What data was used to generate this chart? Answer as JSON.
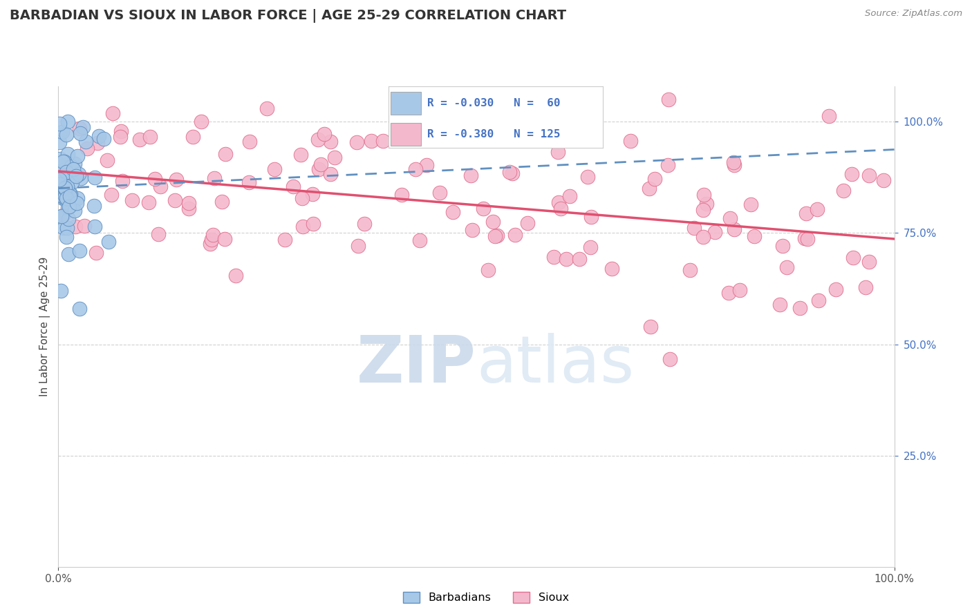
{
  "title": "BARBADIAN VS SIOUX IN LABOR FORCE | AGE 25-29 CORRELATION CHART",
  "source": "Source: ZipAtlas.com",
  "ylabel": "In Labor Force | Age 25-29",
  "x_lim": [
    0.0,
    1.0
  ],
  "y_lim": [
    0.0,
    1.08
  ],
  "blue_color": "#a8c8e8",
  "pink_color": "#f4b8cc",
  "blue_edge": "#6090c0",
  "pink_edge": "#e07090",
  "trend_blue_color": "#6090c0",
  "trend_pink_color": "#e05070",
  "background": "#ffffff",
  "grid_color": "#d0d0d0",
  "R_barbadian": -0.03,
  "R_sioux": -0.38,
  "N_barbadian": 60,
  "N_sioux": 125,
  "watermark_color": "#dce8f4",
  "ytick_color": "#4472c4",
  "title_color": "#333333",
  "source_color": "#888888"
}
